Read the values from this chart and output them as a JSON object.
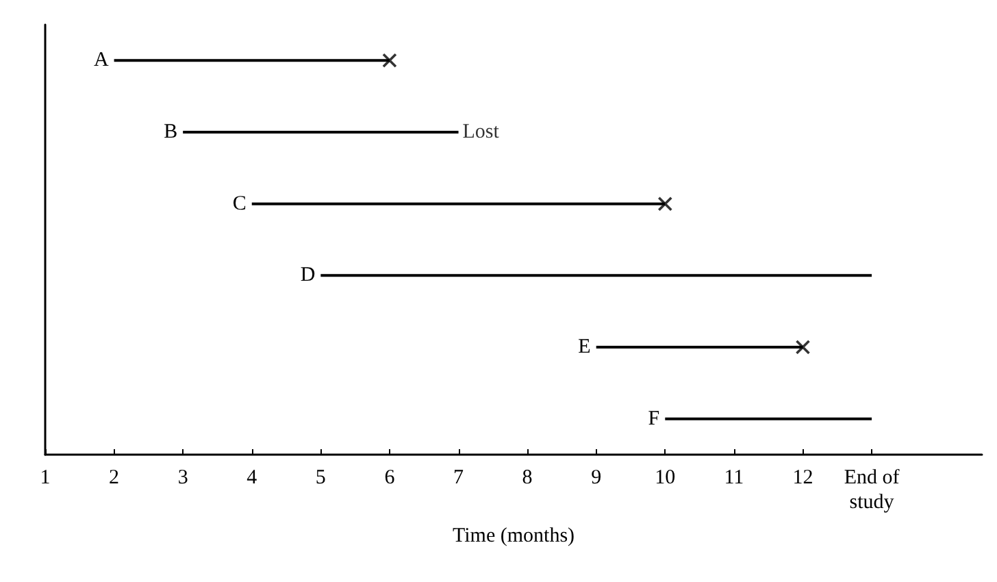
{
  "chart_data": {
    "type": "bar",
    "orientation": "horizontal",
    "xlabel": "Time (months)",
    "categories": [
      "A",
      "B",
      "C",
      "D",
      "E",
      "F"
    ],
    "base": [
      2,
      3,
      4,
      5,
      9,
      10
    ],
    "values": [
      4,
      4,
      6,
      8,
      3,
      3
    ],
    "color": "#000000",
    "series": [
      {
        "type": "scatter",
        "marker": "cross",
        "color": "#000000",
        "values": [
          6,
          null,
          10,
          null,
          12,
          null
        ]
      }
    ],
    "annotations": [
      {
        "text": "Lost",
        "x": 7,
        "y": "B"
      }
    ],
    "xlim": [
      1,
      14.6
    ],
    "xticks": [
      1,
      2,
      3,
      4,
      5,
      6,
      7,
      8,
      9,
      10,
      11,
      12,
      {
        "value": 13,
        "label": "End of study"
      }
    ],
    "tick_labels": "x",
    "grid": false
  }
}
